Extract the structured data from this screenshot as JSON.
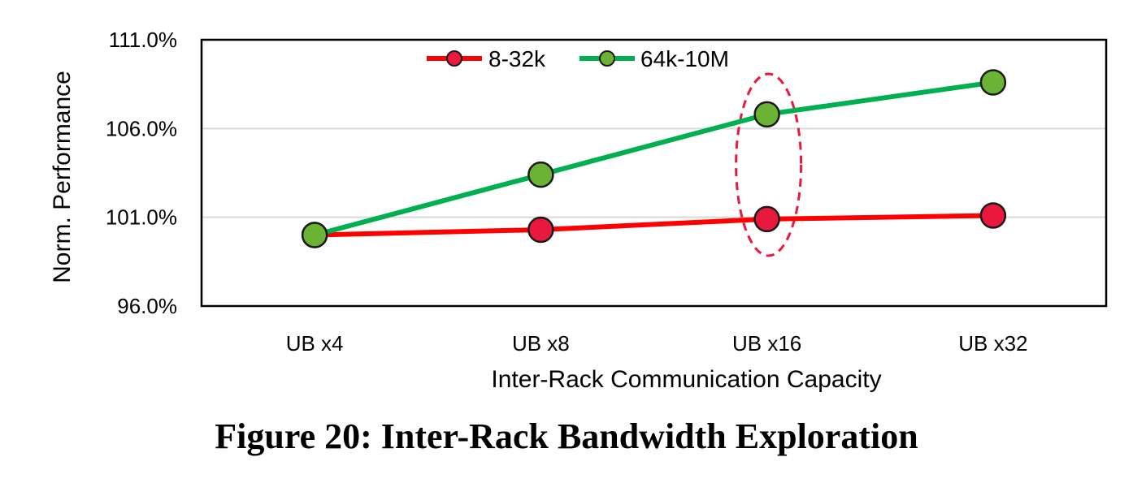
{
  "chart_data": {
    "type": "line",
    "categories": [
      "UB x4",
      "UB x8",
      "UB x16",
      "UB x32"
    ],
    "series": [
      {
        "name": "8-32k",
        "color": "#ff0000",
        "marker_color": "#e8193c",
        "values": [
          100.0,
          100.3,
          100.9,
          101.1
        ]
      },
      {
        "name": "64k-10M",
        "color": "#00b050",
        "marker_color": "#6bb334",
        "values": [
          100.0,
          103.4,
          106.8,
          108.6
        ]
      }
    ],
    "xlabel": "Inter-Rack Communication Capacity",
    "ylabel": "Norm. Performance",
    "ylim": [
      96.0,
      111.0
    ],
    "yticks": [
      "96.0%",
      "101.0%",
      "106.0%",
      "111.0%"
    ],
    "ytick_values": [
      96.0,
      101.0,
      106.0,
      111.0
    ],
    "grid": "horizontal",
    "legend_position": "top",
    "annotation": {
      "type": "dashed-ellipse",
      "category": "UB x16",
      "color": "#e8193c"
    }
  },
  "caption": "Figure 20: Inter-Rack Bandwidth Exploration"
}
